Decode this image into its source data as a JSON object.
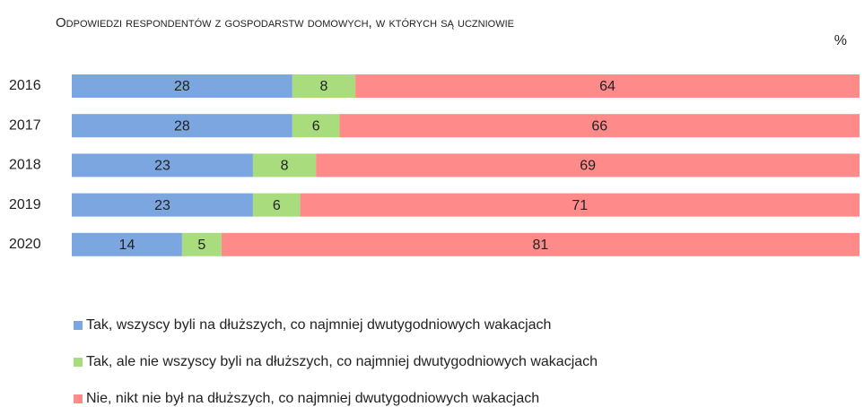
{
  "chart_data": {
    "type": "stacked-barh",
    "title": "Odpowiedzi respondentów z gospodarstw domowych, w których są uczniowie",
    "unit": "%",
    "categories": [
      "2016",
      "2017",
      "2018",
      "2019",
      "2020"
    ],
    "series": [
      {
        "name": "Tak, wszyscy byli na dłuższych, co najmniej dwutygodniowych wakacjach",
        "color": "#7ba6e0",
        "values": [
          28,
          28,
          23,
          23,
          14
        ]
      },
      {
        "name": "Tak, ale nie wszyscy byli na dłuższych, co najmniej dwutygodniowych wakacjach",
        "color": "#a8dc7c",
        "values": [
          8,
          6,
          8,
          6,
          5
        ]
      },
      {
        "name": "Nie, nikt nie był na dłuższych, co najmniej dwutygodniowych wakacjach",
        "color": "#ff8a8a",
        "values": [
          64,
          66,
          69,
          71,
          81
        ]
      }
    ],
    "xlim": [
      0,
      100
    ]
  }
}
